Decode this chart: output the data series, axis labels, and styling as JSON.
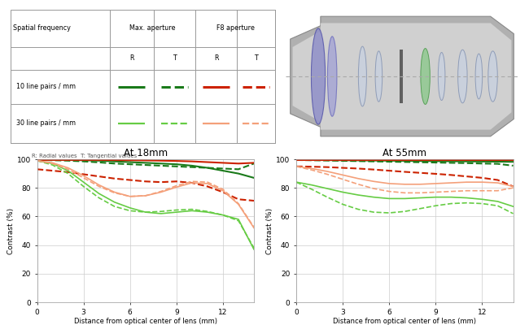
{
  "background_color": "#ffffff",
  "title_18mm": "At 18mm",
  "title_55mm": "At 55mm",
  "xlabel": "Distance from optical center of lens (mm)",
  "ylabel": "Contrast (%)",
  "xlim": [
    0,
    14
  ],
  "ylim": [
    0,
    100
  ],
  "xticks": [
    0,
    3,
    6,
    9,
    12
  ],
  "yticks": [
    0,
    20,
    40,
    60,
    80,
    100
  ],
  "note": "R: Radial values  T: Tangential values",
  "curves_18mm": [
    {
      "color": "#1a7a1a",
      "lw": 1.5,
      "ls": "solid",
      "x": [
        0,
        1,
        2,
        3,
        4,
        5,
        6,
        7,
        8,
        9,
        10,
        11,
        12,
        13,
        14
      ],
      "y": [
        99.5,
        99.5,
        99.5,
        99.3,
        99.0,
        98.5,
        98.0,
        97.5,
        97.0,
        96.5,
        95.5,
        94.0,
        92.0,
        90.0,
        87.0
      ]
    },
    {
      "color": "#1a7a1a",
      "lw": 1.5,
      "ls": "dashed",
      "x": [
        0,
        1,
        2,
        3,
        4,
        5,
        6,
        7,
        8,
        9,
        10,
        11,
        12,
        13,
        14
      ],
      "y": [
        99.5,
        99.3,
        99.0,
        98.5,
        97.8,
        97.0,
        96.5,
        96.0,
        95.5,
        95.0,
        94.5,
        94.0,
        93.5,
        93.0,
        97.0
      ]
    },
    {
      "color": "#cc2200",
      "lw": 1.5,
      "ls": "solid",
      "x": [
        0,
        1,
        2,
        3,
        4,
        5,
        6,
        7,
        8,
        9,
        10,
        11,
        12,
        13,
        14
      ],
      "y": [
        99.5,
        99.5,
        99.5,
        99.5,
        99.5,
        99.4,
        99.3,
        99.2,
        99.0,
        98.8,
        98.5,
        98.0,
        97.5,
        97.0,
        97.5
      ]
    },
    {
      "color": "#cc2200",
      "lw": 1.5,
      "ls": "dashed",
      "x": [
        0,
        1,
        2,
        3,
        4,
        5,
        6,
        7,
        8,
        9,
        10,
        11,
        12,
        13,
        14
      ],
      "y": [
        93.0,
        92.0,
        91.0,
        89.5,
        88.0,
        86.5,
        85.5,
        84.5,
        84.0,
        84.5,
        83.5,
        81.0,
        77.0,
        72.0,
        71.0
      ]
    },
    {
      "color": "#66cc44",
      "lw": 1.2,
      "ls": "solid",
      "x": [
        0,
        1,
        2,
        3,
        4,
        5,
        6,
        7,
        8,
        9,
        10,
        11,
        12,
        13,
        14
      ],
      "y": [
        99.0,
        97.0,
        92.0,
        84.0,
        76.0,
        70.0,
        66.0,
        63.0,
        62.0,
        63.0,
        64.0,
        63.0,
        61.0,
        58.0,
        37.0
      ]
    },
    {
      "color": "#66cc44",
      "lw": 1.2,
      "ls": "dashed",
      "x": [
        0,
        1,
        2,
        3,
        4,
        5,
        6,
        7,
        8,
        9,
        10,
        11,
        12,
        13,
        14
      ],
      "y": [
        99.0,
        96.0,
        90.0,
        81.0,
        73.0,
        67.0,
        64.0,
        63.0,
        63.5,
        64.5,
        65.0,
        63.5,
        61.0,
        57.0,
        38.0
      ]
    },
    {
      "color": "#f4a07a",
      "lw": 1.2,
      "ls": "solid",
      "x": [
        0,
        1,
        2,
        3,
        4,
        5,
        6,
        7,
        8,
        9,
        10,
        11,
        12,
        13,
        14
      ],
      "y": [
        99.0,
        97.5,
        94.0,
        88.5,
        82.0,
        77.0,
        74.0,
        74.5,
        77.0,
        80.5,
        83.5,
        83.0,
        78.0,
        68.5,
        52.0
      ]
    },
    {
      "color": "#f4a07a",
      "lw": 1.2,
      "ls": "dashed",
      "x": [
        0,
        1,
        2,
        3,
        4,
        5,
        6,
        7,
        8,
        9,
        10,
        11,
        12,
        13,
        14
      ],
      "y": [
        99.0,
        97.0,
        93.0,
        87.0,
        81.0,
        76.5,
        74.0,
        74.5,
        77.5,
        81.5,
        84.5,
        84.0,
        79.0,
        69.0,
        52.5
      ]
    }
  ],
  "curves_55mm": [
    {
      "color": "#1a7a1a",
      "lw": 1.5,
      "ls": "solid",
      "x": [
        0,
        1,
        2,
        3,
        4,
        5,
        6,
        7,
        8,
        9,
        10,
        11,
        12,
        13,
        14
      ],
      "y": [
        99.5,
        99.5,
        99.4,
        99.3,
        99.2,
        99.1,
        99.0,
        98.9,
        98.8,
        98.7,
        98.6,
        98.5,
        98.4,
        98.3,
        98.2
      ]
    },
    {
      "color": "#1a7a1a",
      "lw": 1.5,
      "ls": "dashed",
      "x": [
        0,
        1,
        2,
        3,
        4,
        5,
        6,
        7,
        8,
        9,
        10,
        11,
        12,
        13,
        14
      ],
      "y": [
        99.5,
        99.3,
        99.1,
        98.9,
        98.7,
        98.5,
        98.3,
        98.1,
        97.9,
        97.7,
        97.5,
        97.3,
        97.0,
        96.8,
        95.5
      ]
    },
    {
      "color": "#cc2200",
      "lw": 1.5,
      "ls": "solid",
      "x": [
        0,
        1,
        2,
        3,
        4,
        5,
        6,
        7,
        8,
        9,
        10,
        11,
        12,
        13,
        14
      ],
      "y": [
        99.5,
        99.5,
        99.5,
        99.5,
        99.5,
        99.5,
        99.5,
        99.5,
        99.5,
        99.5,
        99.5,
        99.5,
        99.5,
        99.5,
        99.5
      ]
    },
    {
      "color": "#cc2200",
      "lw": 1.5,
      "ls": "dashed",
      "x": [
        0,
        1,
        2,
        3,
        4,
        5,
        6,
        7,
        8,
        9,
        10,
        11,
        12,
        13,
        14
      ],
      "y": [
        95.0,
        94.8,
        94.5,
        94.0,
        93.5,
        92.8,
        92.0,
        91.2,
        90.5,
        89.8,
        89.0,
        88.0,
        87.0,
        85.5,
        81.0
      ]
    },
    {
      "color": "#66cc44",
      "lw": 1.2,
      "ls": "solid",
      "x": [
        0,
        1,
        2,
        3,
        4,
        5,
        6,
        7,
        8,
        9,
        10,
        11,
        12,
        13,
        14
      ],
      "y": [
        84.0,
        82.0,
        79.5,
        77.0,
        75.0,
        73.5,
        72.5,
        72.5,
        73.0,
        73.5,
        73.5,
        73.0,
        72.0,
        70.5,
        67.0
      ]
    },
    {
      "color": "#66cc44",
      "lw": 1.2,
      "ls": "dashed",
      "x": [
        0,
        1,
        2,
        3,
        4,
        5,
        6,
        7,
        8,
        9,
        10,
        11,
        12,
        13,
        14
      ],
      "y": [
        84.0,
        79.0,
        73.5,
        68.5,
        65.0,
        63.0,
        62.5,
        63.5,
        65.5,
        67.5,
        69.0,
        69.5,
        69.0,
        67.5,
        62.0
      ]
    },
    {
      "color": "#f4a07a",
      "lw": 1.2,
      "ls": "solid",
      "x": [
        0,
        1,
        2,
        3,
        4,
        5,
        6,
        7,
        8,
        9,
        10,
        11,
        12,
        13,
        14
      ],
      "y": [
        95.0,
        93.5,
        91.5,
        89.0,
        86.5,
        84.5,
        83.0,
        82.5,
        82.5,
        83.0,
        83.5,
        84.0,
        84.0,
        83.5,
        81.0
      ]
    },
    {
      "color": "#f4a07a",
      "lw": 1.2,
      "ls": "dashed",
      "x": [
        0,
        1,
        2,
        3,
        4,
        5,
        6,
        7,
        8,
        9,
        10,
        11,
        12,
        13,
        14
      ],
      "y": [
        95.0,
        92.5,
        89.5,
        86.0,
        82.5,
        79.5,
        77.5,
        76.5,
        76.5,
        77.0,
        77.5,
        78.0,
        78.0,
        78.0,
        80.0
      ]
    }
  ]
}
